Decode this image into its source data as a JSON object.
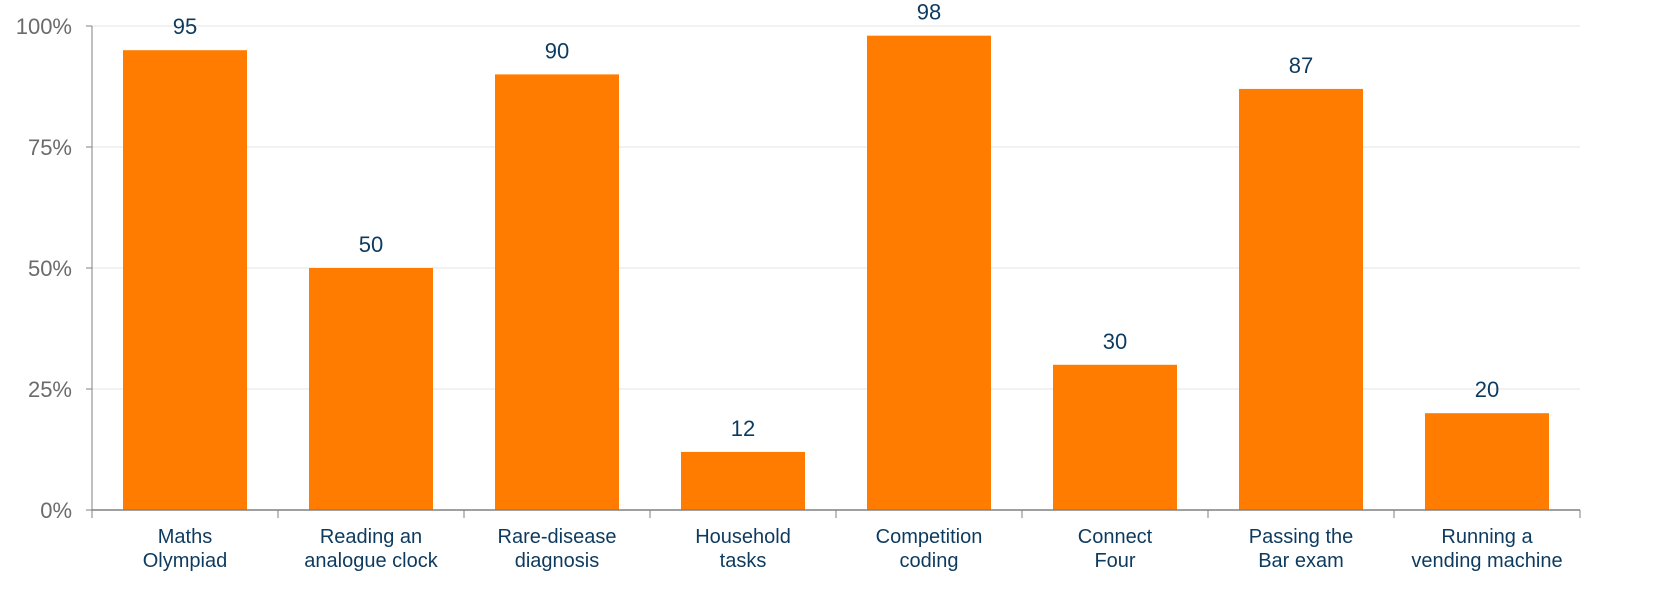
{
  "chart_data": {
    "type": "bar",
    "title": "",
    "xlabel": "",
    "ylabel": "",
    "ylim": [
      0,
      100
    ],
    "y_tick_values": [
      0,
      25,
      50,
      75,
      100
    ],
    "y_tick_labels": [
      "0%",
      "25%",
      "50%",
      "75%",
      "100%"
    ],
    "grid": true,
    "categories": [
      [
        "Maths",
        "Olympiad"
      ],
      [
        "Reading an",
        "analogue clock"
      ],
      [
        "Rare-disease",
        "diagnosis"
      ],
      [
        "Household",
        "tasks"
      ],
      [
        "Competition",
        "coding"
      ],
      [
        "Connect",
        "Four"
      ],
      [
        "Passing the",
        "Bar exam"
      ],
      [
        "Running a",
        "vending machine"
      ]
    ],
    "values": [
      95,
      50,
      90,
      12,
      98,
      30,
      87,
      20
    ],
    "data_labels": [
      "95",
      "50",
      "90",
      "12",
      "98",
      "30",
      "87",
      "20"
    ]
  },
  "colors": {
    "bar": "#ff7c00",
    "grid": "#e6e6e6",
    "axis": "#808080",
    "data_label": "#0d3a5f",
    "x_tick_label": "#0d3a5f",
    "y_tick_label": "#6b6b6b"
  }
}
